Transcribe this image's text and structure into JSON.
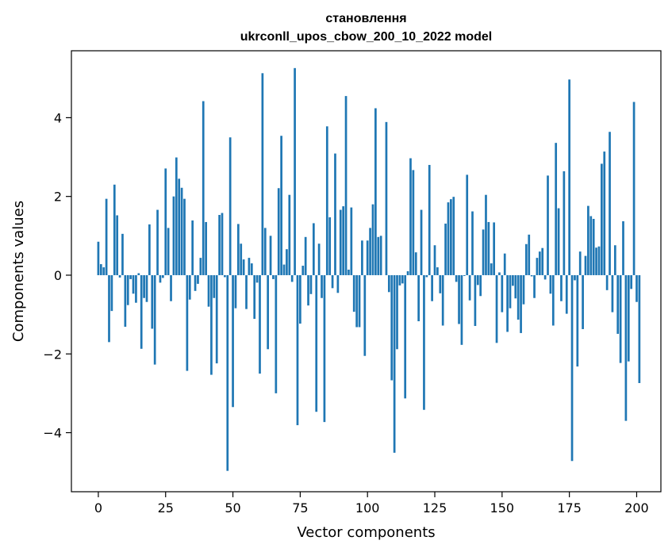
{
  "chart_data": {
    "type": "bar",
    "title_line1": "становлення",
    "title_line2": "ukrconll_upos_cbow_200_10_2022 model",
    "xlabel": "Vector components",
    "ylabel": "Components values",
    "xlim": [
      -10,
      209
    ],
    "ylim": [
      -5.5,
      5.7
    ],
    "xticks": [
      0,
      25,
      50,
      75,
      100,
      125,
      150,
      175,
      200
    ],
    "yticks": [
      -4,
      -2,
      0,
      2,
      4
    ],
    "ytick_labels": [
      "−4",
      "−2",
      "0",
      "2",
      "4"
    ],
    "bar_color": "#1f77b4",
    "values": [
      0.85,
      0.28,
      0.2,
      1.94,
      -1.7,
      -0.91,
      2.3,
      1.52,
      -0.06,
      1.05,
      -1.31,
      -0.76,
      -0.1,
      -0.47,
      -0.7,
      0.05,
      -1.87,
      -0.58,
      -0.68,
      1.29,
      -1.36,
      -2.27,
      1.66,
      -0.19,
      -0.07,
      2.71,
      1.2,
      -0.66,
      2.0,
      2.99,
      2.45,
      2.22,
      1.94,
      -2.43,
      -0.62,
      1.39,
      -0.4,
      -0.22,
      0.44,
      4.42,
      1.35,
      -0.8,
      -2.53,
      -0.58,
      -2.24,
      1.53,
      1.58,
      -0.05,
      -4.97,
      3.5,
      -3.35,
      -0.84,
      1.3,
      0.8,
      0.4,
      -0.86,
      0.44,
      0.3,
      -1.11,
      -0.19,
      -2.5,
      5.13,
      1.2,
      -1.88,
      1.0,
      -0.1,
      -3.0,
      2.21,
      3.54,
      0.27,
      0.66,
      2.04,
      -0.17,
      5.26,
      -3.81,
      -1.23,
      0.24,
      0.97,
      -0.77,
      -0.48,
      1.32,
      -3.47,
      0.8,
      -0.58,
      -3.73,
      3.78,
      1.47,
      -0.33,
      3.09,
      -0.45,
      1.66,
      1.75,
      4.55,
      0.14,
      1.72,
      -0.93,
      -1.32,
      -1.32,
      0.88,
      -2.05,
      0.88,
      1.2,
      1.8,
      4.24,
      0.97,
      1.0,
      0.0,
      3.89,
      -0.43,
      -2.67,
      -4.51,
      -1.88,
      -0.26,
      -0.21,
      -3.13,
      0.1,
      2.97,
      2.67,
      0.58,
      -1.17,
      1.66,
      -3.42,
      -0.05,
      2.8,
      -0.66,
      0.76,
      0.2,
      -0.46,
      -1.28,
      1.31,
      1.85,
      1.93,
      1.99,
      -0.17,
      -1.24,
      -1.77,
      -0.02,
      2.55,
      -0.64,
      1.62,
      -1.29,
      -0.25,
      -0.53,
      1.16,
      2.04,
      1.35,
      0.3,
      1.34,
      -1.72,
      0.07,
      -0.94,
      0.55,
      -1.44,
      -0.84,
      -0.27,
      -0.59,
      -1.13,
      -1.47,
      -0.74,
      0.79,
      1.03,
      -0.03,
      -0.58,
      0.44,
      0.6,
      0.69,
      -0.11,
      2.53,
      -0.47,
      -1.28,
      3.36,
      1.7,
      -0.66,
      2.64,
      -0.98,
      4.97,
      -4.72,
      -0.13,
      -2.32,
      0.6,
      -1.37,
      0.49,
      1.76,
      1.5,
      1.43,
      0.7,
      0.73,
      2.83,
      3.14,
      -0.38,
      3.64,
      -0.94,
      0.76,
      -1.49,
      -2.23,
      1.37,
      -3.7,
      -2.19,
      -0.35,
      4.4,
      -0.68,
      -2.74
    ]
  }
}
